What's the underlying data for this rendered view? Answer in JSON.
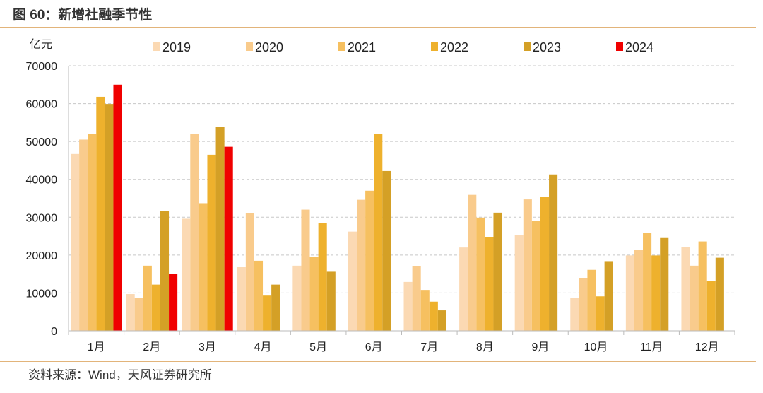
{
  "figure": {
    "title": "图 60：新增社融季节性",
    "source": "资料来源：Wind，天风证券研究所"
  },
  "chart_data": {
    "type": "bar",
    "ylabel": "亿元",
    "ylim": [
      0,
      70000
    ],
    "yticks": [
      0,
      10000,
      20000,
      30000,
      40000,
      50000,
      60000,
      70000
    ],
    "grid": true,
    "legend_position": "top",
    "categories": [
      "1月",
      "2月",
      "3月",
      "4月",
      "5月",
      "6月",
      "7月",
      "8月",
      "9月",
      "10月",
      "11月",
      "12月"
    ],
    "series": [
      {
        "name": "2019",
        "color": "#fbd9b3",
        "values": [
          46700,
          9700,
          29600,
          16800,
          17200,
          26200,
          12900,
          22000,
          25200,
          8700,
          19900,
          22200
        ]
      },
      {
        "name": "2020",
        "color": "#f9cb8c",
        "values": [
          50500,
          8700,
          51900,
          31000,
          32000,
          34600,
          17000,
          35900,
          34700,
          13900,
          21400,
          17200
        ]
      },
      {
        "name": "2021",
        "color": "#f6c060",
        "values": [
          52000,
          17200,
          33700,
          18500,
          19500,
          37000,
          10800,
          29900,
          29000,
          16100,
          25900,
          23600
        ]
      },
      {
        "name": "2022",
        "color": "#eeb12d",
        "values": [
          61800,
          12200,
          46500,
          9300,
          28400,
          51900,
          7700,
          24700,
          35300,
          9100,
          19900,
          13100
        ]
      },
      {
        "name": "2023",
        "color": "#d4a026",
        "values": [
          59900,
          31600,
          53900,
          12200,
          15600,
          42200,
          5400,
          31200,
          41300,
          18400,
          24500,
          19300
        ]
      },
      {
        "name": "2024",
        "color": "#f00000",
        "values": [
          65000,
          15100,
          48600,
          null,
          null,
          null,
          null,
          null,
          null,
          null,
          null,
          null
        ]
      }
    ]
  }
}
